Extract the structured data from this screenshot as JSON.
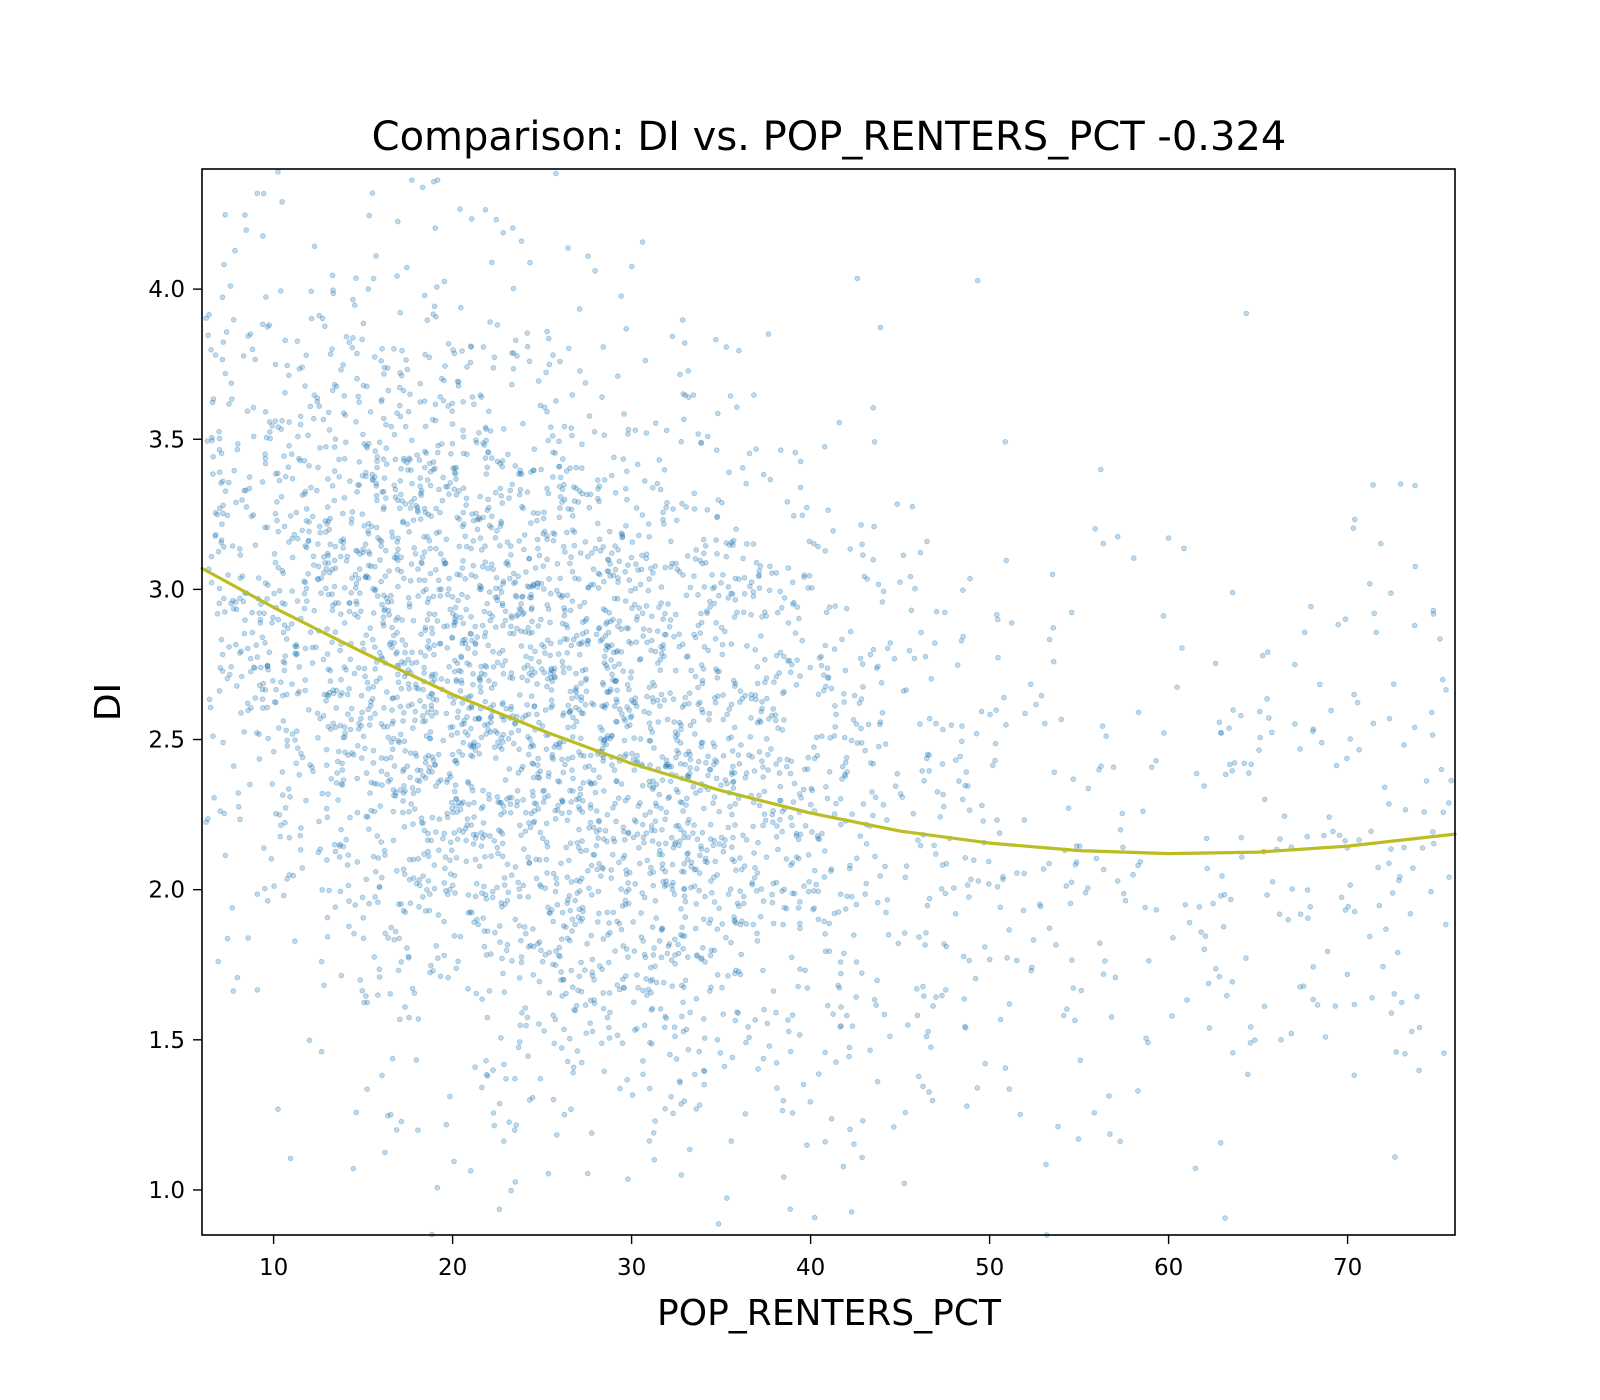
{
  "chart_data": {
    "type": "scatter",
    "title": "Comparison:  DI  vs.  POP_RENTERS_PCT  -0.324",
    "xlabel": "POP_RENTERS_PCT",
    "ylabel": "DI",
    "xlim": [
      6,
      76
    ],
    "ylim": [
      0.85,
      4.4
    ],
    "xticks": [
      10,
      20,
      30,
      40,
      50,
      60,
      70
    ],
    "xtick_labels": [
      "10",
      "20",
      "30",
      "40",
      "50",
      "60",
      "70"
    ],
    "yticks": [
      1.0,
      1.5,
      2.0,
      2.5,
      3.0,
      3.5,
      4.0
    ],
    "ytick_labels": [
      "1.0",
      "1.5",
      "2.0",
      "2.5",
      "3.0",
      "3.5",
      "4.0"
    ],
    "grid": false,
    "point_count": 4000,
    "point_color": "#1f77b4",
    "point_alpha": 0.28,
    "trend_color": "#bcbd22",
    "trend_curve": {
      "x": [
        6,
        10,
        15,
        20,
        25,
        30,
        35,
        40,
        45,
        50,
        55,
        60,
        65,
        70,
        76
      ],
      "y": [
        3.07,
        2.94,
        2.79,
        2.65,
        2.53,
        2.42,
        2.33,
        2.255,
        2.195,
        2.155,
        2.13,
        2.12,
        2.125,
        2.145,
        2.185
      ]
    }
  }
}
